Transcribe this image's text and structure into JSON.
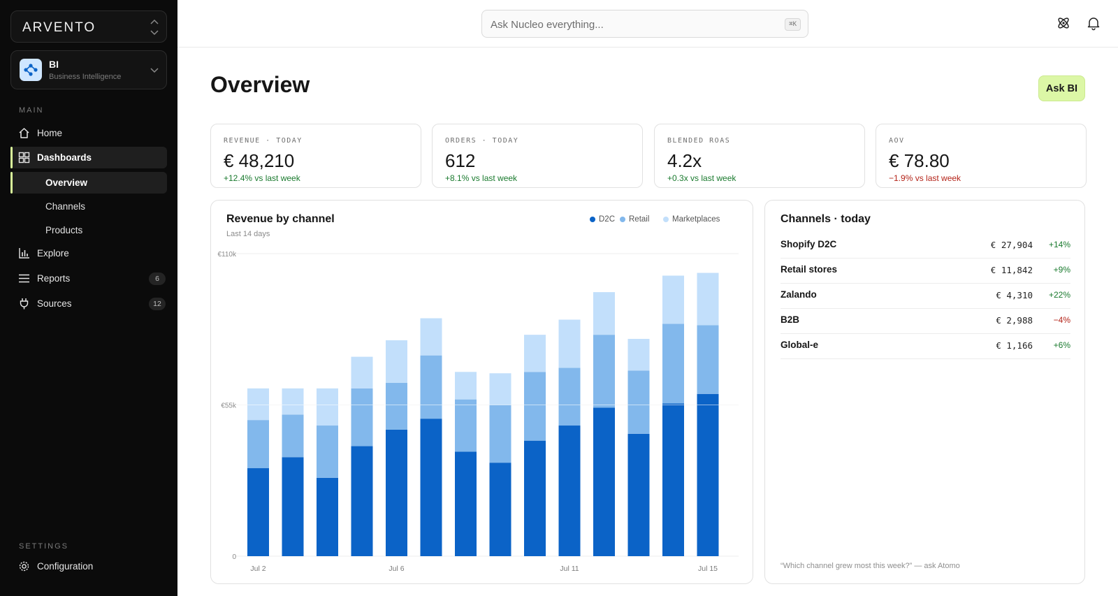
{
  "brand": {
    "name": "ARVENTO"
  },
  "workspace": {
    "title": "BI",
    "subtitle": "Business Intelligence",
    "icon": "nodes-icon"
  },
  "sidebar": {
    "main_label": "MAIN",
    "items": [
      {
        "label": "Home",
        "icon": "home-icon"
      },
      {
        "label": "Dashboards",
        "icon": "grid-icon"
      },
      {
        "label": "Overview"
      },
      {
        "label": "Channels"
      },
      {
        "label": "Products"
      },
      {
        "label": "Explore",
        "icon": "bar-chart-icon"
      },
      {
        "label": "Reports",
        "icon": "list-icon",
        "count": "6"
      },
      {
        "label": "Sources",
        "icon": "plug-icon",
        "count": "12"
      }
    ],
    "settings_label": "SETTINGS",
    "configuration": "Configuration"
  },
  "search": {
    "placeholder": "Ask Nucleo everything...",
    "shortcut": "⌘K"
  },
  "page": {
    "title": "Overview",
    "ask_button": "Ask BI"
  },
  "kpis": [
    {
      "label": "REVENUE · TODAY",
      "value": "€ 48,210",
      "delta": "+12.4% vs last week",
      "trend": "up"
    },
    {
      "label": "ORDERS · TODAY",
      "value": "612",
      "delta": "+8.1% vs last week",
      "trend": "up"
    },
    {
      "label": "BLENDED ROAS",
      "value": "4.2x",
      "delta": "+0.3x vs last week",
      "trend": "up"
    },
    {
      "label": "AOV",
      "value": "€ 78.80",
      "delta": "−1.9% vs last week",
      "trend": "down"
    }
  ],
  "revenue_card": {
    "title": "Revenue by channel",
    "subtitle": "Last 14 days",
    "legend": [
      "D2C",
      "Retail",
      "Marketplaces"
    ]
  },
  "chart_data": {
    "type": "bar",
    "stacked": true,
    "title": "Revenue by channel",
    "subtitle": "Last 14 days",
    "x_tick_labels": [
      "Jul 2",
      "Jul 6",
      "Jul 11",
      "Jul 15"
    ],
    "y_tick_labels": [
      "€110k",
      "€55k",
      "0"
    ],
    "ylim": [
      0,
      110000
    ],
    "grid": true,
    "legend_position": "top-right",
    "series": [
      {
        "name": "D2C",
        "color": "#0b63c7",
        "values": [
          32000,
          36000,
          28500,
          40000,
          46000,
          50000,
          38000,
          34000,
          42000,
          47500,
          54000,
          44500,
          55500,
          59000
        ]
      },
      {
        "name": "Retail",
        "color": "#82b8ec",
        "values": [
          17500,
          15500,
          19000,
          21000,
          17000,
          23000,
          19000,
          21000,
          25000,
          21000,
          26500,
          23000,
          29000,
          25000
        ]
      },
      {
        "name": "Marketplaces",
        "color": "#c2dffb",
        "values": [
          11500,
          9500,
          13500,
          11500,
          15500,
          13500,
          10000,
          11500,
          13500,
          17500,
          15500,
          11500,
          17500,
          19000
        ]
      }
    ]
  },
  "channels_card": {
    "title": "Channels · today",
    "rows": [
      {
        "name": "Shopify D2C",
        "value": "€ 27,904",
        "delta": "+14%",
        "trend": "up"
      },
      {
        "name": "Retail stores",
        "value": "€ 11,842",
        "delta": "+9%",
        "trend": "up"
      },
      {
        "name": "Zalando",
        "value": "€ 4,310",
        "delta": "+22%",
        "trend": "up"
      },
      {
        "name": "B2B",
        "value": "€ 2,988",
        "delta": "−4%",
        "trend": "down"
      },
      {
        "name": "Global-e",
        "value": "€ 1,166",
        "delta": "+6%",
        "trend": "up"
      }
    ],
    "hint": "“Which channel grew most this week?” — ask Atomo"
  },
  "colors": {
    "accent": "#dcf7a6",
    "sidebar_bg": "#0b0b0b",
    "positive": "#1a7a2e",
    "negative": "#b42318"
  }
}
